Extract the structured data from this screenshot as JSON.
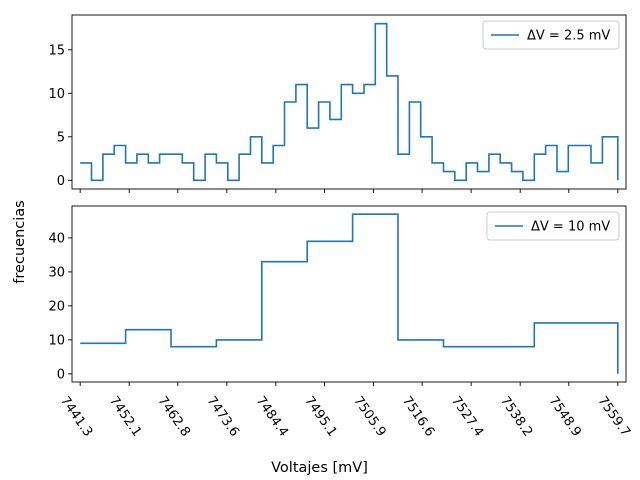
{
  "chart_data": [
    {
      "type": "line",
      "step": "post",
      "series": [
        {
          "name": "ΔV = 2.5 mV",
          "color": "#1f77b4",
          "x": [
            7441.3,
            7443.8,
            7446.3,
            7448.8,
            7451.3,
            7453.8,
            7456.3,
            7458.8,
            7461.3,
            7463.8,
            7466.3,
            7468.8,
            7471.3,
            7473.8,
            7476.3,
            7478.8,
            7481.3,
            7483.8,
            7486.3,
            7488.8,
            7491.3,
            7493.8,
            7496.3,
            7498.8,
            7501.3,
            7503.8,
            7506.3,
            7508.8,
            7511.3,
            7513.8,
            7516.3,
            7518.8,
            7521.3,
            7523.8,
            7526.3,
            7528.8,
            7531.3,
            7533.8,
            7536.3,
            7538.8,
            7541.3,
            7543.8,
            7546.3,
            7548.8,
            7551.3,
            7553.8,
            7556.3,
            7558.8,
            7559.7
          ],
          "values": [
            2,
            0,
            3,
            4,
            2,
            3,
            2,
            3,
            3,
            2,
            0,
            3,
            2,
            0,
            3,
            5,
            2,
            4,
            9,
            11,
            6,
            9,
            7,
            11,
            10,
            11,
            18,
            12,
            3,
            9,
            5,
            2,
            1,
            0,
            2,
            1,
            3,
            2,
            1,
            0,
            3,
            4,
            1,
            4,
            4,
            2,
            5,
            5,
            0
          ]
        }
      ],
      "ylim": [
        -1,
        19
      ],
      "yticks": [
        0,
        5,
        10,
        15
      ],
      "legend_label": "ΔV = 2.5 mV",
      "legend_placement": "top-right",
      "grid": false
    },
    {
      "type": "line",
      "step": "post",
      "series": [
        {
          "name": "ΔV = 10 mV",
          "color": "#1f77b4",
          "x": [
            7441.3,
            7451.3,
            7461.3,
            7471.3,
            7481.3,
            7491.3,
            7501.3,
            7511.3,
            7521.3,
            7531.3,
            7541.3,
            7551.3,
            7559.7
          ],
          "values": [
            9,
            13,
            8,
            10,
            33,
            39,
            47,
            10,
            8,
            8,
            15,
            15,
            0
          ]
        }
      ],
      "ylim": [
        -2.4,
        49.4
      ],
      "yticks": [
        0,
        10,
        20,
        30,
        40
      ],
      "legend_label": "ΔV = 10 mV",
      "legend_placement": "top-right",
      "grid": false
    }
  ],
  "axes": {
    "xlim": [
      7439.5,
      7561.5
    ],
    "xticks": [
      7441.3,
      7452.1,
      7462.8,
      7473.6,
      7484.4,
      7495.1,
      7505.9,
      7516.6,
      7527.4,
      7538.2,
      7548.9,
      7559.7
    ],
    "xtick_labels": [
      "7441.3",
      "7452.1",
      "7462.8",
      "7473.6",
      "7484.4",
      "7495.1",
      "7505.9",
      "7516.6",
      "7527.4",
      "7538.2",
      "7548.9",
      "7559.7"
    ],
    "xlabel": "Voltajes [mV]",
    "ylabel": "frecuencias"
  }
}
